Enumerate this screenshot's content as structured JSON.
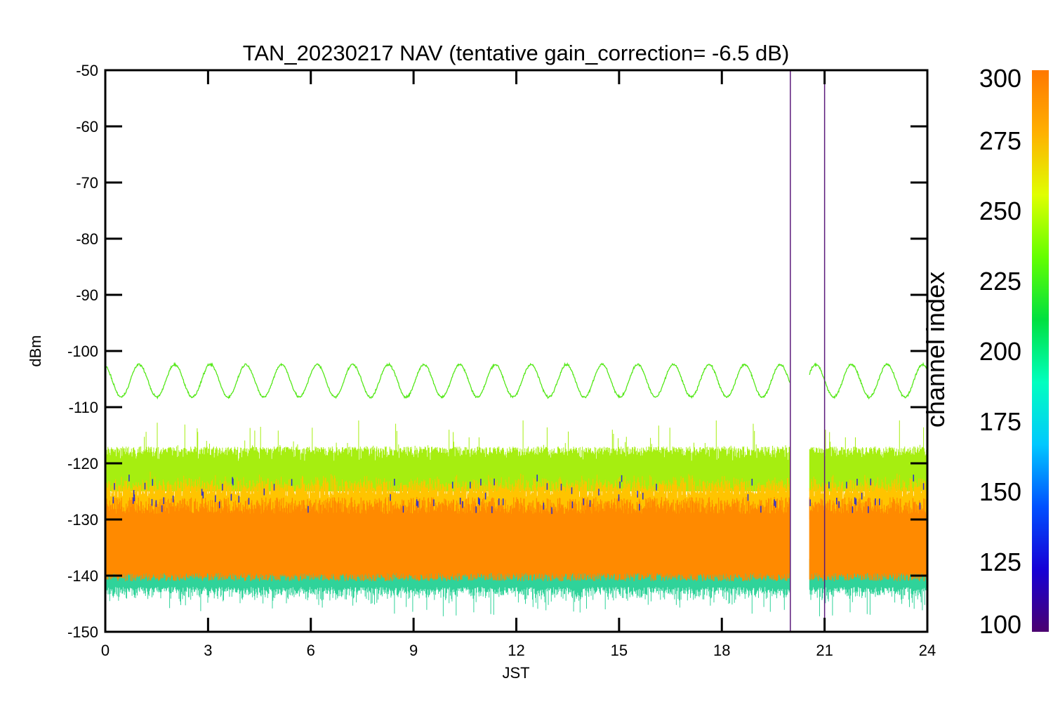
{
  "chart_data": {
    "type": "line",
    "title": "TAN_20230217 NAV (tentative gain_correction= -6.5 dB)",
    "xlabel": "JST",
    "ylabel": "dBm",
    "xlim": [
      0,
      24
    ],
    "ylim": [
      -150,
      -50
    ],
    "x_ticks": [
      "0",
      "3",
      "6",
      "9",
      "12",
      "15",
      "18",
      "21",
      "24"
    ],
    "x_tick_values": [
      0,
      3,
      6,
      9,
      12,
      15,
      18,
      21,
      24
    ],
    "y_ticks": [
      "-50",
      "-60",
      "-70",
      "-80",
      "-90",
      "-100",
      "-110",
      "-120",
      "-130",
      "-140",
      "-150"
    ],
    "y_tick_values": [
      -50,
      -60,
      -70,
      -80,
      -90,
      -100,
      -110,
      -120,
      -130,
      -140,
      -150
    ],
    "grid": false,
    "colorbar": {
      "label": "channel index",
      "range": [
        100,
        300
      ],
      "ticks": [
        "300",
        "275",
        "250",
        "225",
        "200",
        "175",
        "150",
        "125",
        "100"
      ],
      "tick_values": [
        300,
        275,
        250,
        225,
        200,
        175,
        150,
        125,
        100
      ],
      "colormap": [
        "#4b0070",
        "#1600d6",
        "#0050ff",
        "#00c8ff",
        "#00ffbf",
        "#00e040",
        "#64ff00",
        "#e0ff00",
        "#ffb000",
        "#ff7800"
      ]
    },
    "series": [
      {
        "channel": 235,
        "color": "#55e81a",
        "kind": "sinusoid",
        "center_dBm": -105.3,
        "amplitude_dB": 2.9,
        "period_hours": 1.04,
        "x_range": [
          0,
          24
        ]
      },
      {
        "channel": 290,
        "color": "#ff8a00",
        "kind": "noise-band",
        "core_range_dBm": [
          -141,
          -122
        ],
        "envelope_dBm": [
          -150,
          -112
        ],
        "x_range": [
          0,
          24
        ]
      }
    ],
    "gaps": [
      {
        "x_start": 20.0,
        "x_end": 20.55
      }
    ],
    "markers": [
      {
        "x": 20.0,
        "channel": 100,
        "color": "#5a1a7a"
      },
      {
        "x": 21.0,
        "channel": 100,
        "color": "#5a1a7a"
      }
    ]
  }
}
